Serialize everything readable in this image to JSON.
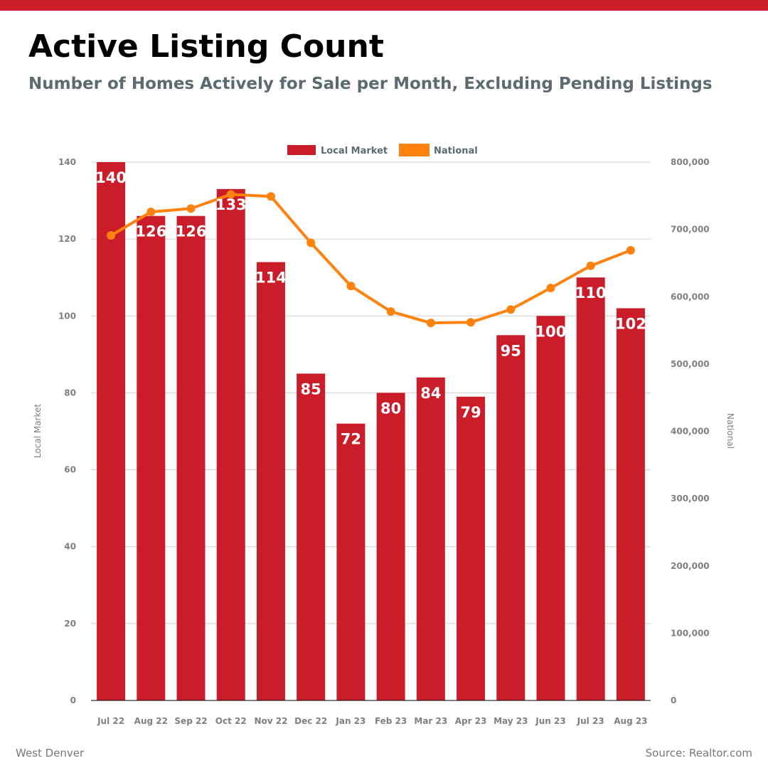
{
  "header": {
    "title": "Active Listing Count",
    "subtitle": "Number of Homes Actively for Sale per Month, Excluding Pending Listings"
  },
  "footer": {
    "left": "West Denver",
    "right": "Source: Realtor.com"
  },
  "colors": {
    "bar": "#cb1c2a",
    "line": "#ff820f",
    "grid": "#cfcfcf",
    "tick": "#7f7f7f",
    "legend_text": "#5b6b70",
    "top_bar": "#cb1c2a"
  },
  "chart_data": {
    "type": "bar",
    "categories": [
      "Jul 22",
      "Aug 22",
      "Sep 22",
      "Oct 22",
      "Nov 22",
      "Dec 22",
      "Jan 23",
      "Feb 23",
      "Mar 23",
      "Apr 23",
      "May 23",
      "Jun 23",
      "Jul 23",
      "Aug 23"
    ],
    "series": [
      {
        "name": "Local Market",
        "type": "bar",
        "axis": "left",
        "values": [
          140,
          126,
          126,
          133,
          114,
          85,
          72,
          80,
          84,
          79,
          95,
          100,
          110,
          102
        ]
      },
      {
        "name": "National",
        "type": "line",
        "axis": "right",
        "values": [
          691000,
          726000,
          731000,
          752000,
          749000,
          680000,
          616000,
          578000,
          561000,
          562000,
          581000,
          613000,
          646000,
          669000
        ]
      }
    ],
    "y_left": {
      "label": "Local Market",
      "range": [
        0,
        140
      ],
      "ticks": [
        "0",
        "20",
        "40",
        "60",
        "80",
        "100",
        "120",
        "140"
      ]
    },
    "y_right": {
      "label": "National",
      "range": [
        0,
        800000
      ],
      "ticks": [
        "0",
        "100,000",
        "200,000",
        "300,000",
        "400,000",
        "500,000",
        "600,000",
        "700,000",
        "800,000"
      ]
    },
    "grid": true,
    "legend_position": "top-center"
  }
}
